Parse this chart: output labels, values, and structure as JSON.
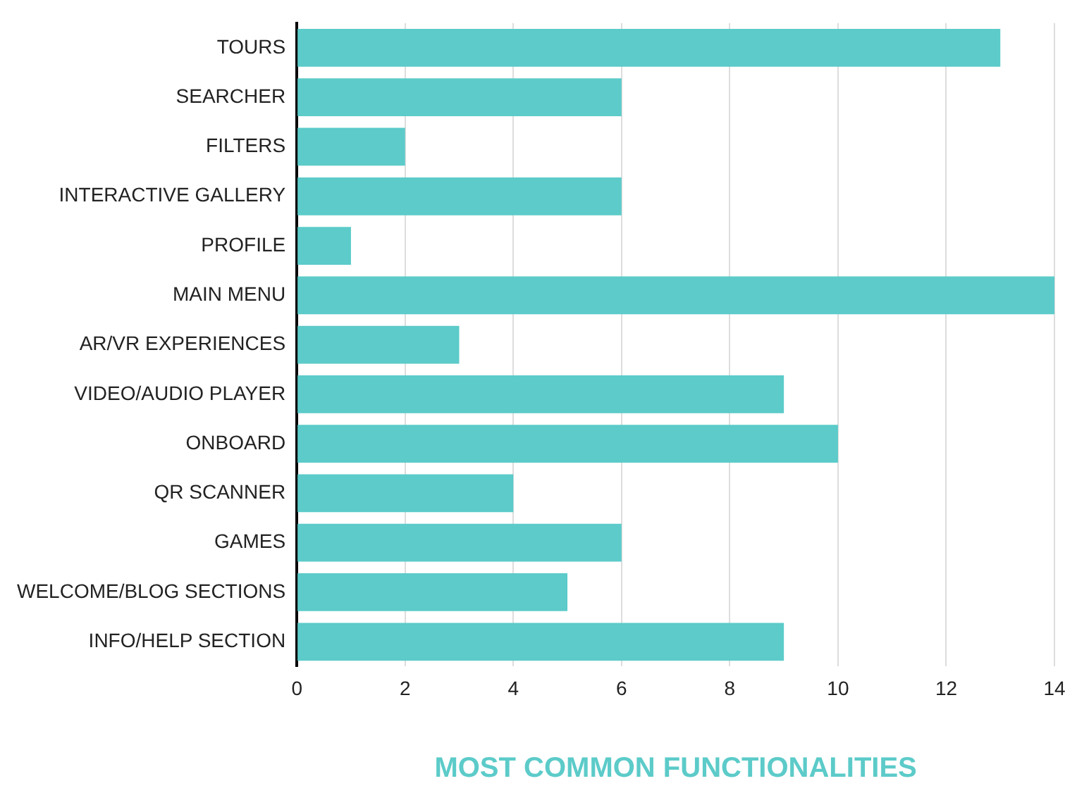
{
  "chart_data": {
    "type": "bar",
    "orientation": "horizontal",
    "xlabel": "MOST COMMON FUNCTIONALITIES",
    "categories": [
      "TOURS",
      "SEARCHER",
      "FILTERS",
      "INTERACTIVE GALLERY",
      "PROFILE",
      "MAIN MENU",
      "AR/VR EXPERIENCES",
      "VIDEO/AUDIO PLAYER",
      "ONBOARD",
      "QR SCANNER",
      "GAMES",
      "WELCOME/BLOG SECTIONS",
      "INFO/HELP SECTION"
    ],
    "values": [
      13,
      6,
      2,
      6,
      1,
      14,
      3,
      9,
      10,
      4,
      6,
      5,
      9
    ],
    "color": "#5ccbc9",
    "xlim": [
      0,
      14
    ],
    "xticks": [
      0,
      2,
      4,
      6,
      8,
      10,
      12,
      14
    ],
    "grid": "x",
    "legend": false
  }
}
